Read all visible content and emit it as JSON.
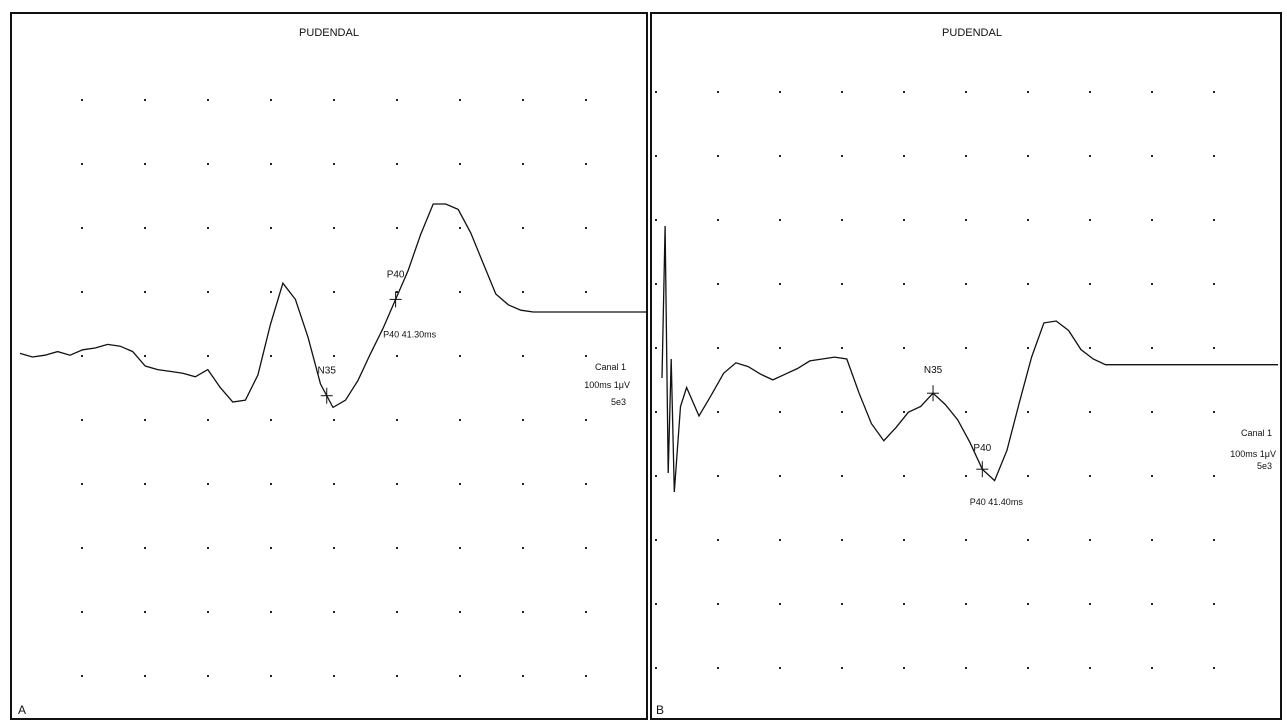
{
  "colors": {
    "trace": "#111111",
    "grid_dot": "#222222",
    "background": "#ffffff"
  },
  "panels": [
    {
      "panel_label": "A",
      "title": "PUDENDAL",
      "channel": [
        "Canal 1",
        "100ms 1μV",
        "5e3"
      ],
      "markers": [
        {
          "label": "N35",
          "at": 49
        },
        {
          "label": "P40",
          "at": 60,
          "readout": "P40 41.30ms"
        }
      ]
    },
    {
      "panel_label": "B",
      "title": "PUDENDAL",
      "channel": [
        "Canal 1",
        "100ms 1μV",
        "5e3"
      ],
      "markers": [
        {
          "label": "N35",
          "at": 44
        },
        {
          "label": "P40",
          "at": 52,
          "readout": "P40 41.40ms"
        }
      ]
    }
  ],
  "chart_data": [
    {
      "type": "line",
      "title": "PUDENDAL",
      "grid": true,
      "grid_divisions": {
        "x": 10,
        "y": 10
      },
      "x": [
        0,
        2,
        4,
        6,
        8,
        10,
        12,
        14,
        16,
        18,
        20,
        22,
        24,
        26,
        28,
        30,
        32,
        34,
        36,
        38,
        40,
        42,
        44,
        46,
        48,
        50,
        52,
        54,
        56,
        58,
        60,
        62,
        64,
        66,
        68,
        70,
        72,
        74,
        76,
        78,
        80,
        82,
        84,
        86,
        88,
        90,
        92,
        94,
        96,
        98,
        100
      ],
      "series": [
        {
          "values": [
            0.4,
            0.0,
            0.2,
            0.6,
            0.2,
            0.8,
            1.0,
            1.4,
            1.2,
            0.6,
            -1.0,
            -1.4,
            -1.6,
            -1.8,
            -2.2,
            -1.4,
            -3.4,
            -5.0,
            -4.8,
            -2.0,
            3.6,
            8.2,
            6.4,
            2.2,
            -3.0,
            -5.6,
            -4.8,
            -2.6,
            0.4,
            3.2,
            6.4,
            9.6,
            13.6,
            17.0,
            17.0,
            16.4,
            13.8,
            10.4,
            7.0,
            5.8,
            5.2,
            5.0,
            5.0,
            5.0,
            5.0,
            5.0,
            5.0,
            5.0,
            5.0,
            5.0,
            5.0
          ]
        }
      ]
    },
    {
      "type": "line",
      "title": "PUDENDAL",
      "grid": true,
      "grid_divisions": {
        "x": 10,
        "y": 10
      },
      "x": [
        0,
        0.5,
        1,
        1.5,
        2,
        3,
        4,
        6,
        8,
        10,
        12,
        14,
        16,
        18,
        20,
        22,
        24,
        26,
        28,
        30,
        32,
        34,
        36,
        38,
        40,
        42,
        44,
        46,
        48,
        50,
        52,
        54,
        56,
        58,
        60,
        62,
        64,
        66,
        68,
        70,
        72,
        74,
        76,
        78,
        80,
        82,
        84,
        86,
        88,
        90,
        92,
        94,
        96,
        98,
        100
      ],
      "series": [
        {
          "values": [
            0,
            16,
            -10,
            2,
            -12,
            -3,
            -1,
            -4,
            -1.8,
            0.5,
            1.6,
            1.2,
            0.4,
            -0.2,
            0.4,
            1.0,
            1.8,
            2.0,
            2.2,
            2.0,
            -1.6,
            -4.8,
            -6.6,
            -5.2,
            -3.6,
            -3.0,
            -1.6,
            -2.8,
            -4.4,
            -6.8,
            -9.6,
            -10.8,
            -7.6,
            -2.6,
            2.2,
            5.8,
            6.0,
            5.0,
            3.0,
            2.0,
            1.4,
            1.4,
            1.4,
            1.4,
            1.4,
            1.4,
            1.4,
            1.4,
            1.4,
            1.4,
            1.4,
            1.4,
            1.4,
            1.4,
            1.4
          ]
        }
      ]
    }
  ]
}
